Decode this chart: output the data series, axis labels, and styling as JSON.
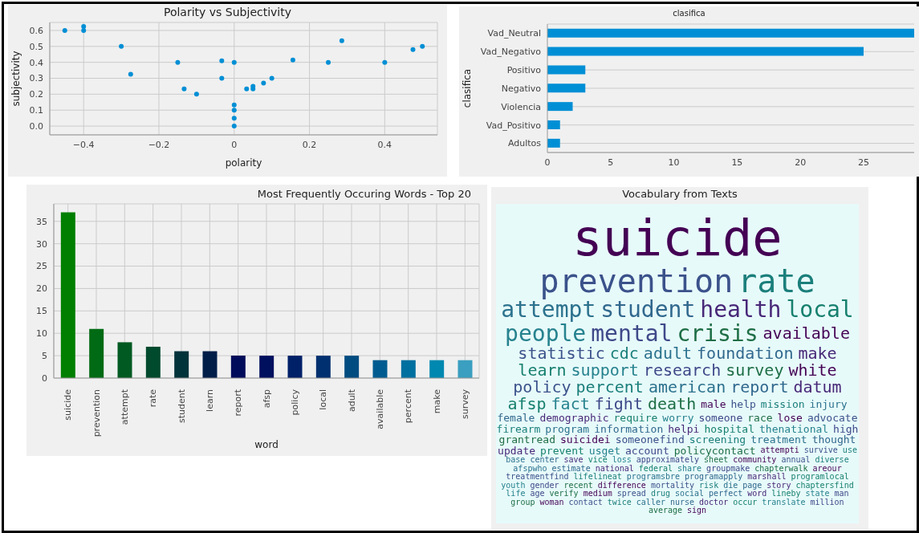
{
  "chart_data": [
    {
      "type": "scatter",
      "title": "Polarity vs Subjectivity",
      "xlabel": "polarity",
      "ylabel": "subjectivity",
      "color": "#008fd5",
      "marker": "circle",
      "grid": true,
      "x": [
        -0.45,
        -0.4,
        -0.4,
        -0.3,
        -0.275,
        -0.15,
        -0.133,
        -0.1,
        -0.033,
        -0.033,
        0,
        0,
        0,
        0,
        0,
        0.033,
        0.05,
        0.05,
        0.078,
        0.1,
        0.156,
        0.25,
        0.286,
        0.4,
        0.475,
        0.5
      ],
      "values": [
        0.6,
        0.625,
        0.6,
        0.5,
        0.325,
        0.4,
        0.233,
        0.2,
        0.41,
        0.3,
        0.4,
        0.133,
        0.1,
        0.05,
        0,
        0.233,
        0.25,
        0.233,
        0.27,
        0.3,
        0.414,
        0.4,
        0.536,
        0.4,
        0.48,
        0.5
      ],
      "xlim": [
        -0.49,
        0.54
      ],
      "ylim": [
        -0.055,
        0.65
      ],
      "xticks": [
        {
          "value": -0.4,
          "label": "−0.4"
        },
        {
          "value": -0.2,
          "label": "−0.2"
        },
        0.0,
        0.2,
        0.4
      ],
      "yticks": [
        {
          "value": 0,
          "label": "0.0"
        },
        0.1,
        0.2,
        0.3,
        0.4,
        0.5,
        0.6
      ]
    },
    {
      "type": "bar",
      "orientation": "horizontal",
      "title": "clasifica",
      "ylabel": "clasifica",
      "color": "#008fd5",
      "grid": "y",
      "categories": [
        "Vad_Neutral",
        "Vad_Negativo",
        "Positivo",
        "Negativo",
        "Violencia",
        "Vad_Positivo",
        "Adultos"
      ],
      "values": [
        29,
        25,
        3,
        3,
        2,
        1,
        1
      ],
      "xlim": [
        0,
        29
      ],
      "xticks": [
        0,
        5,
        10,
        15,
        20,
        25
      ]
    },
    {
      "type": "bar",
      "title": "Most Frequently Occuring Words - Top 20",
      "xlabel": "word",
      "grid": true,
      "categories": [
        "suicide",
        "prevention",
        "attempt",
        "rate",
        "student",
        "learn",
        "report",
        "afsp",
        "policy",
        "local",
        "adult",
        "available",
        "percent",
        "make",
        "survey"
      ],
      "values": [
        37,
        11,
        8,
        7,
        6,
        6,
        5,
        5,
        5,
        5,
        5,
        4,
        4,
        4,
        4
      ],
      "colors": [
        "#007f00",
        "#006b14",
        "#005a22",
        "#004a2e",
        "#00333a",
        "#001e48",
        "#000c5a",
        "#00105e",
        "#002068",
        "#00306f",
        "#004c80",
        "#005c90",
        "#0070a0",
        "#0088b0",
        "#3a9fc0"
      ],
      "ylim": [
        0,
        38.9
      ],
      "yticks": [
        0,
        5,
        10,
        15,
        20,
        25,
        30,
        35
      ]
    },
    {
      "type": "other",
      "title": "Vocabulary from Texts",
      "annotations": [
        "suicide",
        "prevention",
        "rate",
        "attempt",
        "student",
        "health",
        "local",
        "people",
        "mental",
        "crisis",
        "available",
        "statistic",
        "cdc",
        "adult",
        "foundation",
        "make",
        "learn",
        "support",
        "research",
        "survey",
        "white",
        "policy",
        "percent",
        "american",
        "report",
        "datum",
        "afsp",
        "fact",
        "fight",
        "death",
        "male",
        "help",
        "mission",
        "injury",
        "female",
        "demographic",
        "require",
        "worry",
        "someone",
        "race",
        "lose",
        "advocate",
        "firearm",
        "program",
        "information",
        "helpi",
        "hospital",
        "thenational",
        "high",
        "grantread",
        "suicidei",
        "someonefind",
        "screening",
        "treatment",
        "thought",
        "update",
        "prevent",
        "usget",
        "account",
        "policycontact",
        "attempti",
        "survive",
        "use",
        "base",
        "center",
        "save",
        "vice",
        "loss",
        "approximately",
        "sheet",
        "community",
        "annual",
        "diverse",
        "afspwho",
        "estimate",
        "national",
        "federal",
        "share",
        "groupmake",
        "chapterwalk",
        "areour",
        "treatmentfind",
        "lifelineat",
        "programsbre",
        "programapply",
        "marshall",
        "programlocal",
        "youth",
        "gender",
        "recent",
        "difference",
        "mortality",
        "risk",
        "die",
        "page",
        "story",
        "chaptersfind",
        "life",
        "age",
        "verify",
        "medium",
        "spread",
        "drug",
        "social",
        "perfect",
        "word",
        "lineby",
        "state",
        "man",
        "group",
        "woman",
        "contact",
        "twice",
        "caller",
        "nurse",
        "doctor",
        "occur",
        "translate",
        "million",
        "average",
        "sign"
      ]
    }
  ]
}
